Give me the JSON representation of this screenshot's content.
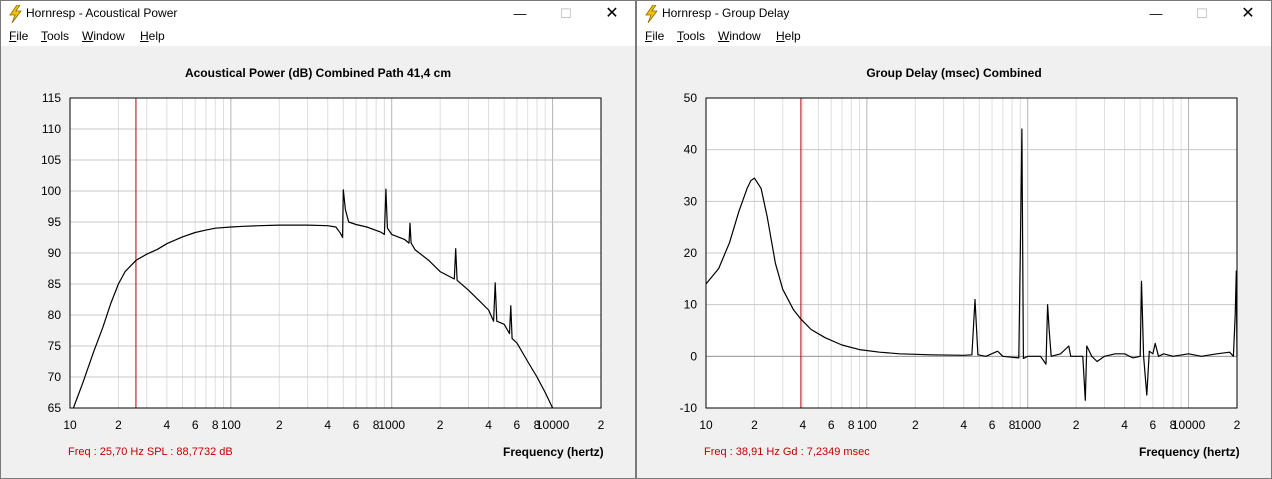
{
  "windows": [
    {
      "title": "Hornresp - Acoustical Power",
      "menu": [
        "File",
        "Tools",
        "Window",
        "Help"
      ],
      "controls": {
        "minimize": "—",
        "maximize": "☐",
        "close": "✕"
      },
      "chart_title": "Acoustical Power (dB)   Combined   Path 41,4 cm",
      "status": "Freq : 25,70 Hz     SPL : 88,7732 dB",
      "xlabel": "Frequency (hertz)"
    },
    {
      "title": "Hornresp - Group Delay",
      "menu": [
        "File",
        "Tools",
        "Window",
        "Help"
      ],
      "controls": {
        "minimize": "—",
        "maximize": "☐",
        "close": "✕"
      },
      "chart_title": "Group Delay (msec)   Combined",
      "status": "Freq : 38,91 Hz     Gd : 7,2349 msec",
      "xlabel": "Frequency (hertz)"
    }
  ],
  "chart_data": [
    {
      "type": "line",
      "title": "Acoustical Power (dB)   Combined   Path 41,4 cm",
      "xlabel": "Frequency (hertz)",
      "ylabel": "",
      "xscale": "log",
      "xlim": [
        10,
        20000
      ],
      "ylim": [
        65,
        115
      ],
      "xtick_labels": [
        {
          "v": 10,
          "t": "10"
        },
        {
          "v": 20,
          "t": "2"
        },
        {
          "v": 40,
          "t": "4"
        },
        {
          "v": 60,
          "t": "6"
        },
        {
          "v": 80,
          "t": "8"
        },
        {
          "v": 100,
          "t": "100"
        },
        {
          "v": 200,
          "t": "2"
        },
        {
          "v": 400,
          "t": "4"
        },
        {
          "v": 600,
          "t": "6"
        },
        {
          "v": 800,
          "t": "8"
        },
        {
          "v": 1000,
          "t": "1000"
        },
        {
          "v": 2000,
          "t": "2"
        },
        {
          "v": 4000,
          "t": "4"
        },
        {
          "v": 6000,
          "t": "6"
        },
        {
          "v": 8000,
          "t": "8"
        },
        {
          "v": 10000,
          "t": "10000"
        },
        {
          "v": 20000,
          "t": "2"
        }
      ],
      "yticks": [
        65,
        70,
        75,
        80,
        85,
        90,
        95,
        100,
        105,
        110,
        115
      ],
      "cursor_x": 25.7,
      "cursor_color": "#b00000",
      "line_color": "#000000",
      "grid": true,
      "series": [
        {
          "values": [
            [
              10.5,
              65
            ],
            [
              12,
              69
            ],
            [
              14,
              74
            ],
            [
              16,
              78
            ],
            [
              18,
              82
            ],
            [
              20,
              85
            ],
            [
              22,
              87
            ],
            [
              25.7,
              88.8
            ],
            [
              30,
              89.8
            ],
            [
              35,
              90.6
            ],
            [
              40,
              91.5
            ],
            [
              50,
              92.6
            ],
            [
              60,
              93.3
            ],
            [
              70,
              93.7
            ],
            [
              80,
              94
            ],
            [
              100,
              94.2
            ],
            [
              120,
              94.3
            ],
            [
              150,
              94.4
            ],
            [
              200,
              94.5
            ],
            [
              300,
              94.5
            ],
            [
              400,
              94.4
            ],
            [
              450,
              94.2
            ],
            [
              480,
              93.2
            ],
            [
              495,
              92.5
            ],
            [
              500,
              100.2
            ],
            [
              515,
              97
            ],
            [
              540,
              95
            ],
            [
              600,
              94.6
            ],
            [
              700,
              94.2
            ],
            [
              850,
              93.4
            ],
            [
              900,
              93
            ],
            [
              920,
              100.3
            ],
            [
              940,
              94
            ],
            [
              1000,
              93
            ],
            [
              1200,
              92.2
            ],
            [
              1280,
              91.6
            ],
            [
              1300,
              94.8
            ],
            [
              1320,
              91.6
            ],
            [
              1400,
              90.5
            ],
            [
              1700,
              88.8
            ],
            [
              2000,
              87
            ],
            [
              2450,
              85.8
            ],
            [
              2500,
              90.7
            ],
            [
              2550,
              85.6
            ],
            [
              3000,
              84
            ],
            [
              3500,
              82.3
            ],
            [
              4000,
              80.8
            ],
            [
              4300,
              79
            ],
            [
              4400,
              85.2
            ],
            [
              4500,
              79
            ],
            [
              5000,
              78.5
            ],
            [
              5400,
              77
            ],
            [
              5500,
              81.5
            ],
            [
              5600,
              76.2
            ],
            [
              6000,
              75.5
            ],
            [
              7000,
              72.5
            ],
            [
              8000,
              70
            ],
            [
              9000,
              67.5
            ],
            [
              10000,
              65
            ]
          ]
        }
      ]
    },
    {
      "type": "line",
      "title": "Group Delay (msec)   Combined",
      "xlabel": "Frequency (hertz)",
      "ylabel": "",
      "xscale": "log",
      "xlim": [
        10,
        20000
      ],
      "ylim": [
        -10,
        50
      ],
      "xtick_labels": [
        {
          "v": 10,
          "t": "10"
        },
        {
          "v": 20,
          "t": "2"
        },
        {
          "v": 40,
          "t": "4"
        },
        {
          "v": 60,
          "t": "6"
        },
        {
          "v": 80,
          "t": "8"
        },
        {
          "v": 100,
          "t": "100"
        },
        {
          "v": 200,
          "t": "2"
        },
        {
          "v": 400,
          "t": "4"
        },
        {
          "v": 600,
          "t": "6"
        },
        {
          "v": 800,
          "t": "8"
        },
        {
          "v": 1000,
          "t": "1000"
        },
        {
          "v": 2000,
          "t": "2"
        },
        {
          "v": 4000,
          "t": "4"
        },
        {
          "v": 6000,
          "t": "6"
        },
        {
          "v": 8000,
          "t": "8"
        },
        {
          "v": 10000,
          "t": "10000"
        },
        {
          "v": 20000,
          "t": "2"
        }
      ],
      "yticks": [
        -10,
        0,
        10,
        20,
        30,
        40,
        50
      ],
      "cursor_x": 38.91,
      "cursor_color": "#b00000",
      "line_color": "#000000",
      "grid": true,
      "series": [
        {
          "values": [
            [
              10,
              14
            ],
            [
              12,
              17
            ],
            [
              14,
              22
            ],
            [
              16,
              28
            ],
            [
              18,
              32.5
            ],
            [
              19,
              34
            ],
            [
              20,
              34.5
            ],
            [
              22,
              32.5
            ],
            [
              24,
              27
            ],
            [
              27,
              18
            ],
            [
              30,
              13
            ],
            [
              35,
              9
            ],
            [
              38.91,
              7.2
            ],
            [
              45,
              5.2
            ],
            [
              55,
              3.6
            ],
            [
              70,
              2.2
            ],
            [
              90,
              1.3
            ],
            [
              120,
              0.8
            ],
            [
              160,
              0.5
            ],
            [
              250,
              0.3
            ],
            [
              400,
              0.2
            ],
            [
              450,
              0.3
            ],
            [
              470,
              11
            ],
            [
              490,
              0.3
            ],
            [
              550,
              0
            ],
            [
              650,
              1
            ],
            [
              700,
              0
            ],
            [
              880,
              -0.3
            ],
            [
              900,
              21.5
            ],
            [
              920,
              44
            ],
            [
              940,
              -0.4
            ],
            [
              1000,
              0
            ],
            [
              1200,
              0
            ],
            [
              1300,
              -1.5
            ],
            [
              1330,
              10
            ],
            [
              1360,
              5
            ],
            [
              1400,
              0
            ],
            [
              1600,
              0.5
            ],
            [
              1800,
              2
            ],
            [
              1850,
              0
            ],
            [
              2200,
              0
            ],
            [
              2280,
              -8.5
            ],
            [
              2330,
              2
            ],
            [
              2500,
              0
            ],
            [
              2700,
              -1
            ],
            [
              3000,
              0
            ],
            [
              3500,
              0.5
            ],
            [
              4000,
              0.5
            ],
            [
              4500,
              -0.3
            ],
            [
              5000,
              0
            ],
            [
              5100,
              14.5
            ],
            [
              5250,
              0
            ],
            [
              5500,
              -7.5
            ],
            [
              5700,
              1
            ],
            [
              6000,
              0.5
            ],
            [
              6200,
              2.5
            ],
            [
              6500,
              0
            ],
            [
              7000,
              0.5
            ],
            [
              8000,
              0
            ],
            [
              10000,
              0.5
            ],
            [
              12000,
              0
            ],
            [
              15000,
              0.5
            ],
            [
              18000,
              0.8
            ],
            [
              19000,
              0
            ],
            [
              19500,
              8
            ],
            [
              19800,
              16.5
            ],
            [
              20000,
              0
            ]
          ]
        }
      ]
    }
  ]
}
